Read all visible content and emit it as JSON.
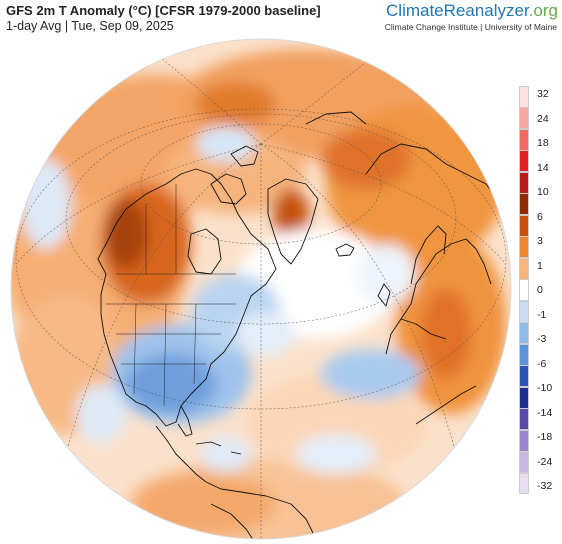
{
  "header": {
    "title": "GFS 2m T Anomaly (°C) [CFSR 1979-2000 baseline]",
    "subtitle": "1-day Avg | Tue, Sep 09, 2025"
  },
  "branding": {
    "brand_part1": "Climate",
    "brand_part2": "Reanalyzer",
    "brand_part3": ".org",
    "credit": "Climate Change Institute | University of Maine"
  },
  "legend": {
    "unit": "°C",
    "ticks": [
      "32",
      "24",
      "18",
      "14",
      "10",
      "6",
      "3",
      "1",
      "0",
      "-1",
      "-3",
      "-6",
      "-10",
      "-14",
      "-18",
      "-24",
      "-32"
    ],
    "colors": [
      "#fde0e0",
      "#f8a6a2",
      "#f06a61",
      "#e42020",
      "#b81a1a",
      "#8e2a06",
      "#c9510c",
      "#f0862f",
      "#f7b57c",
      "#ffffff",
      "#c8dcf2",
      "#8fbbe9",
      "#5b93d8",
      "#2a55b5",
      "#1e2e8c",
      "#5a4aa8",
      "#9a86cc",
      "#c7b7e0",
      "#e9dff0"
    ]
  },
  "map": {
    "projection": "orthographic",
    "center": "North Atlantic / Arctic",
    "colors": {
      "warm_light": "#f9c79a",
      "warm": "#f29c54",
      "warm_strong": "#d9651c",
      "warm_max": "#9b3a08",
      "cool_light": "#cfe0f4",
      "cool": "#8fb9e8",
      "cool_strong": "#5e93d6",
      "neutral": "#ffffff",
      "land_line": "#111111",
      "grid_line": "#555555"
    }
  }
}
